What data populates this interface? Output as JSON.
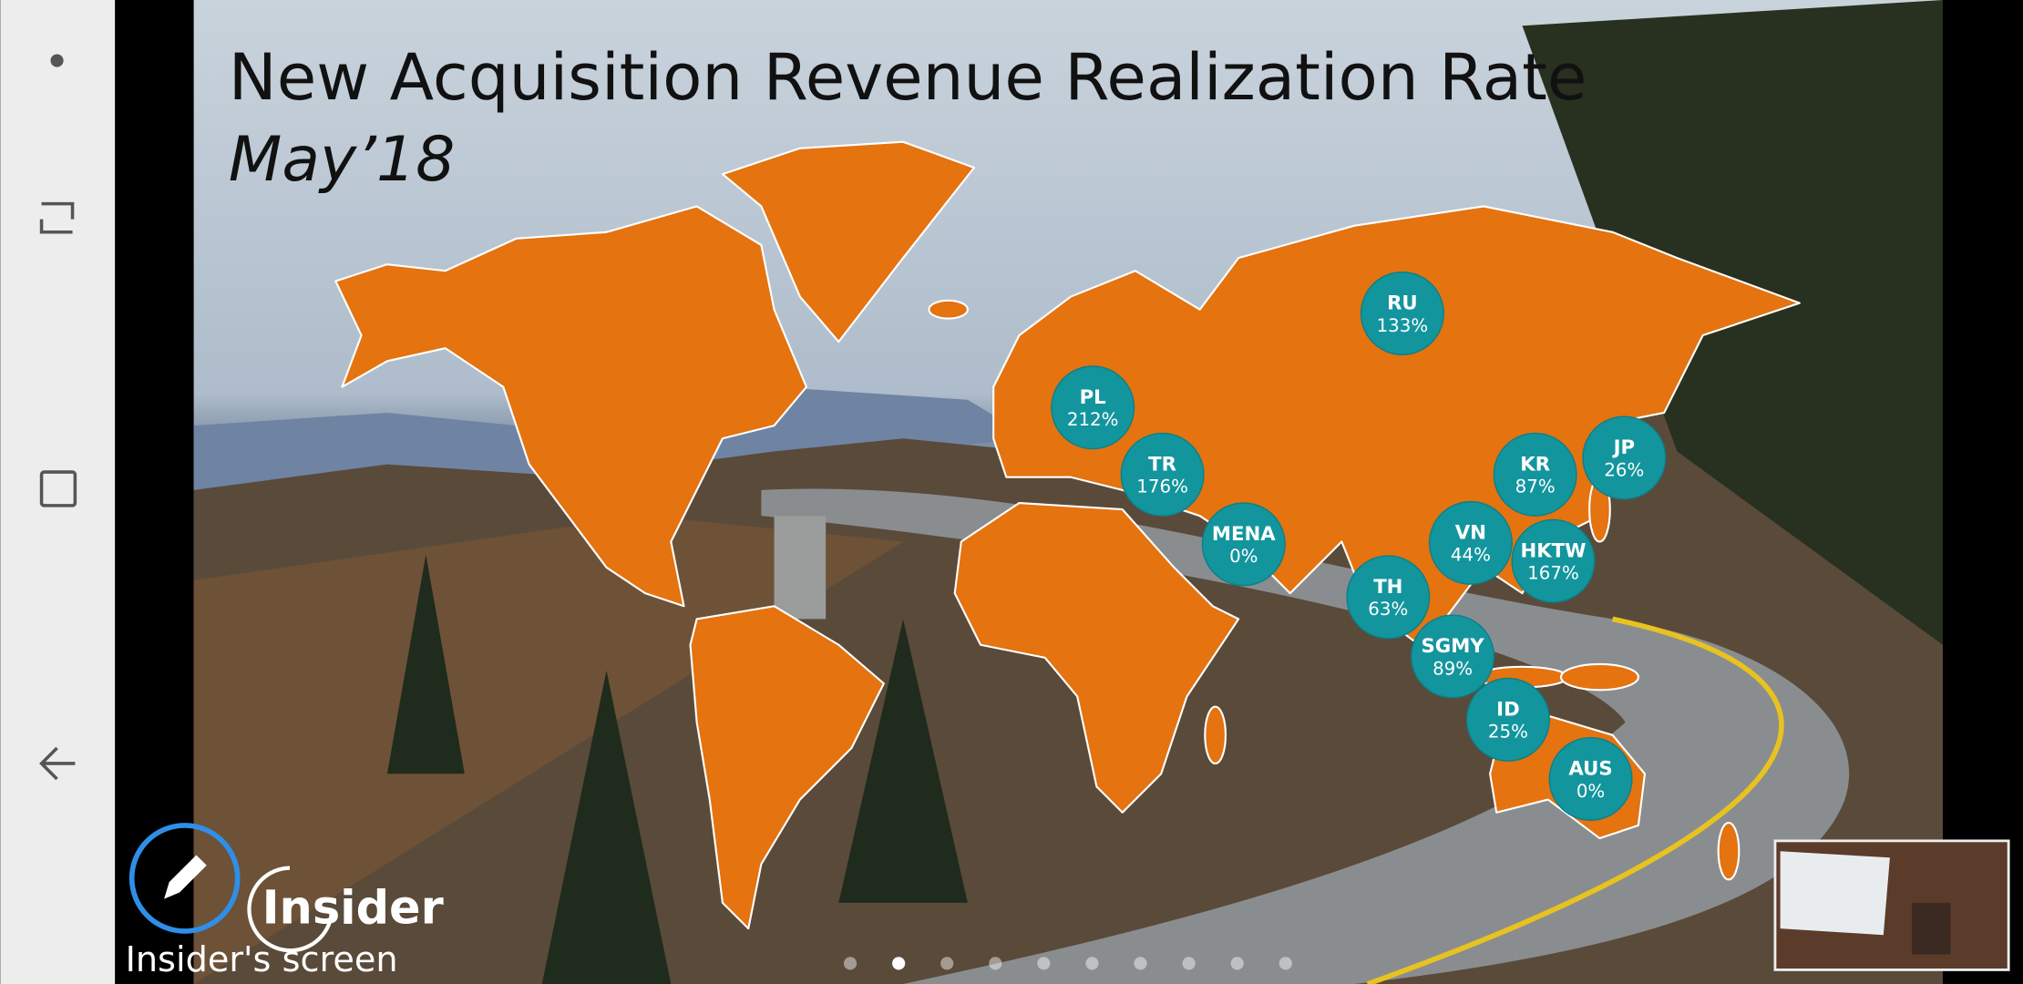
{
  "slide": {
    "title": "New Acquisition Revenue Realization Rate",
    "subtitle": "May’18",
    "regions": [
      {
        "code": "RU",
        "rate": "133%"
      },
      {
        "code": "PL",
        "rate": "212%"
      },
      {
        "code": "TR",
        "rate": "176%"
      },
      {
        "code": "MENA",
        "rate": "0%"
      },
      {
        "code": "KR",
        "rate": "87%"
      },
      {
        "code": "JP",
        "rate": "26%"
      },
      {
        "code": "VN",
        "rate": "44%"
      },
      {
        "code": "HKTW",
        "rate": "167%"
      },
      {
        "code": "TH",
        "rate": "63%"
      },
      {
        "code": "SGMY",
        "rate": "89%"
      },
      {
        "code": "ID",
        "rate": "25%"
      },
      {
        "code": "AUS",
        "rate": "0%"
      }
    ]
  },
  "logo": "Insider",
  "presenter_label": "Insider's screen"
}
